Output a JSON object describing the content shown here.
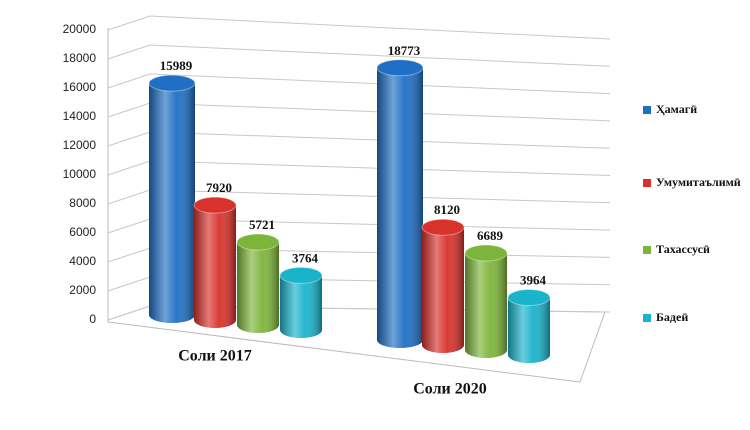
{
  "chart_data": {
    "type": "bar3d",
    "categories": [
      "Соли 2017",
      "Соли 2020"
    ],
    "series": [
      {
        "name": "Ҳамагӣ",
        "color": "#1f6fc4",
        "values": [
          15989,
          18773
        ]
      },
      {
        "name": "Умумитаълимӣ",
        "color": "#d9312b",
        "values": [
          7920,
          8120
        ]
      },
      {
        "name": "Тахассусӣ",
        "color": "#7db53a",
        "values": [
          5721,
          6689
        ]
      },
      {
        "name": "Бадеӣ",
        "color": "#19b3cc",
        "values": [
          3764,
          3964
        ]
      }
    ],
    "ylim": [
      0,
      20000
    ],
    "yticks": [
      0,
      2000,
      4000,
      6000,
      8000,
      10000,
      12000,
      14000,
      16000,
      18000,
      20000
    ],
    "grid": true,
    "legend": "right"
  }
}
